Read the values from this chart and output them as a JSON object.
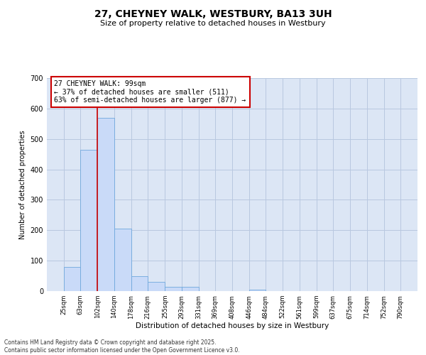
{
  "title_line1": "27, CHEYNEY WALK, WESTBURY, BA13 3UH",
  "title_line2": "Size of property relative to detached houses in Westbury",
  "xlabel": "Distribution of detached houses by size in Westbury",
  "ylabel": "Number of detached properties",
  "footnote_line1": "Contains HM Land Registry data © Crown copyright and database right 2025.",
  "footnote_line2": "Contains public sector information licensed under the Open Government Licence v3.0.",
  "annotation_line1": "27 CHEYNEY WALK: 99sqm",
  "annotation_line2": "← 37% of detached houses are smaller (511)",
  "annotation_line3": "63% of semi-detached houses are larger (877) →",
  "property_size": 99,
  "bin_edges": [
    25,
    63,
    102,
    140,
    178,
    216,
    255,
    293,
    331,
    369,
    408,
    446,
    484,
    522,
    561,
    599,
    637,
    675,
    714,
    752,
    790
  ],
  "bar_heights": [
    80,
    465,
    570,
    205,
    50,
    30,
    15,
    15,
    0,
    0,
    0,
    5,
    0,
    0,
    0,
    0,
    0,
    0,
    0,
    0
  ],
  "bar_color": "#c9daf8",
  "bar_edgecolor": "#6fa8dc",
  "vline_color": "#cc0000",
  "vline_x": 102,
  "annotation_box_edgecolor": "#cc0000",
  "plot_bg_color": "#dce6f5",
  "background_color": "#ffffff",
  "grid_color": "#b8c8e0",
  "ylim": [
    0,
    700
  ],
  "yticks": [
    0,
    100,
    200,
    300,
    400,
    500,
    600,
    700
  ]
}
